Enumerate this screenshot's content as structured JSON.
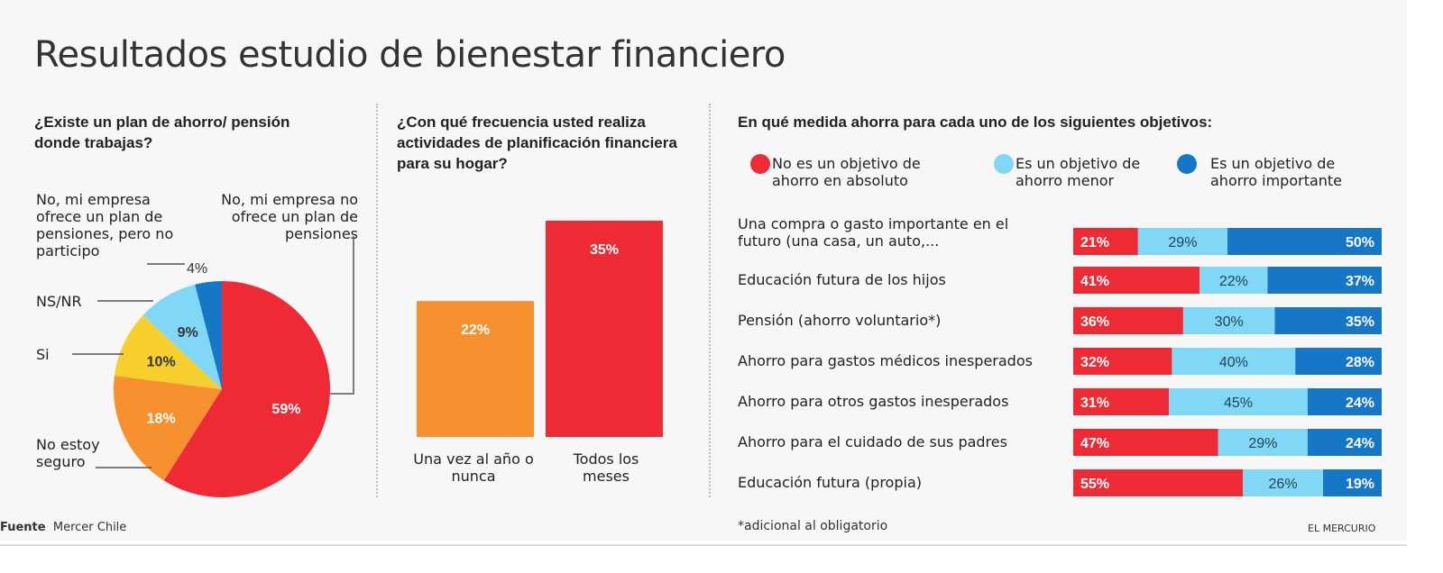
{
  "title": "Resultados estudio de bienestar financiero",
  "colors": {
    "red": "#ee2a35",
    "orange": "#f7902f",
    "yellow": "#f7d02f",
    "light_blue": "#80d8f6",
    "dark_blue": "#1577c6"
  },
  "chart_data": [
    {
      "type": "pie",
      "title": "¿Existe un plan de ahorro/ pensión donde trabajas?",
      "slices": [
        {
          "label": "No, mi empresa no ofrece un plan de pensiones",
          "value": 59,
          "display": "59%",
          "color": "#ee2a35"
        },
        {
          "label": "No estoy seguro",
          "value": 18,
          "display": "18%",
          "color": "#f7902f"
        },
        {
          "label": "Si",
          "value": 10,
          "display": "10%",
          "color": "#f7d02f"
        },
        {
          "label": "NS/NR",
          "value": 9,
          "display": "9%",
          "color": "#80d8f6"
        },
        {
          "label": "No, mi empresa ofrece un plan de pensiones, pero no participo",
          "value": 4,
          "display": "4%",
          "color": "#1577c6"
        }
      ]
    },
    {
      "type": "bar",
      "title": "¿Con qué frecuencia usted realiza actividades de planificación financiera para su hogar?",
      "categories": [
        "Una vez al año o nunca",
        "Todos los meses"
      ],
      "values": [
        22,
        35
      ],
      "labels": [
        "22%",
        "35%"
      ],
      "colors": [
        "#f7902f",
        "#ee2a35"
      ],
      "ylim": [
        0,
        35
      ]
    },
    {
      "type": "bar",
      "stacked": true,
      "orientation": "horizontal",
      "title": "En qué medida ahorra para cada uno de los siguientes objetivos:",
      "categories": [
        "Una compra o gasto importante en el futuro (una casa, un auto,...",
        "Educación futura de los hijos",
        "Pensión (ahorro voluntario*)",
        "Ahorro para gastos médicos inesperados",
        "Ahorro para otros gastos inesperados",
        "Ahorro para el cuidado de sus padres",
        "Educación futura (propia)"
      ],
      "series": [
        {
          "name": "No es un objetivo de ahorro en absoluto",
          "color": "#ee2a35",
          "values": [
            21,
            41,
            36,
            32,
            31,
            47,
            55
          ]
        },
        {
          "name": "Es un objetivo de ahorro menor",
          "color": "#80d8f6",
          "values": [
            29,
            22,
            30,
            40,
            45,
            29,
            26
          ]
        },
        {
          "name": "Es un objetivo de ahorro importante",
          "color": "#1577c6",
          "values": [
            50,
            37,
            35,
            28,
            24,
            24,
            19
          ]
        }
      ],
      "legend": "top"
    }
  ],
  "footer": {
    "source_label": "Fuente",
    "source": "Mercer Chile",
    "note": "*adicional al obligatorio",
    "brand": "EL MERCURIO"
  }
}
